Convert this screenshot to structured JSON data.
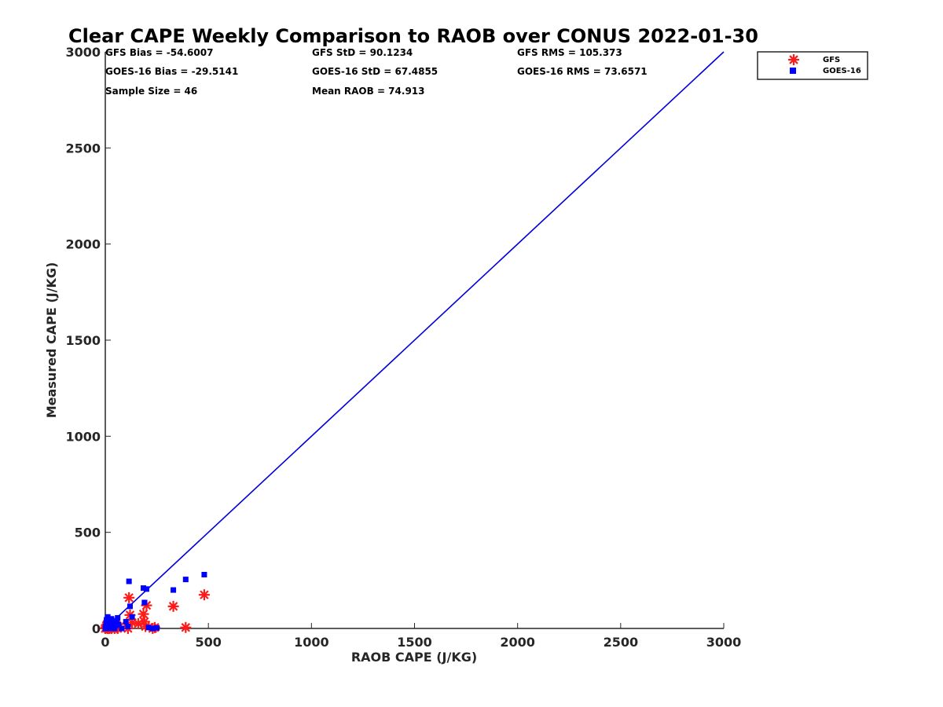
{
  "chart_data": {
    "type": "scatter",
    "title": "Clear CAPE Weekly Comparison to RAOB over CONUS 2022-01-30",
    "xlabel": "RAOB CAPE (J/KG)",
    "ylabel": "Measured CAPE (J/KG)",
    "xlim": [
      0,
      3000
    ],
    "ylim": [
      0,
      3000
    ],
    "xticks": [
      0,
      500,
      1000,
      1500,
      2000,
      2500,
      3000
    ],
    "yticks": [
      0,
      500,
      1000,
      1500,
      2000,
      2500,
      3000
    ],
    "grid": false,
    "legend_position": "top-right",
    "stats": [
      "GFS Bias = -54.6007",
      "GFS StD = 90.1234",
      "GFS RMS = 105.373",
      "GOES-16 Bias = -29.5141",
      "GOES-16 StD = 67.4855",
      "GOES-16 RMS = 73.6571",
      "Sample Size = 46",
      "Mean RAOB = 74.913"
    ],
    "one_to_one_line": {
      "x": [
        0,
        3000
      ],
      "y": [
        0,
        3000
      ],
      "color": "#0000dd"
    },
    "series": [
      {
        "name": "GFS",
        "marker": "asterisk",
        "color": "#ff1a1a",
        "points": [
          [
            0,
            0
          ],
          [
            3,
            5
          ],
          [
            5,
            15
          ],
          [
            8,
            2
          ],
          [
            10,
            20
          ],
          [
            12,
            0
          ],
          [
            15,
            8
          ],
          [
            18,
            30
          ],
          [
            20,
            0
          ],
          [
            22,
            12
          ],
          [
            25,
            5
          ],
          [
            30,
            0
          ],
          [
            35,
            18
          ],
          [
            40,
            8
          ],
          [
            45,
            0
          ],
          [
            50,
            25
          ],
          [
            55,
            5
          ],
          [
            60,
            0
          ],
          [
            70,
            10
          ],
          [
            110,
            0
          ],
          [
            115,
            160
          ],
          [
            120,
            70
          ],
          [
            130,
            30
          ],
          [
            160,
            25
          ],
          [
            185,
            75
          ],
          [
            190,
            35
          ],
          [
            195,
            10
          ],
          [
            200,
            120
          ],
          [
            230,
            0
          ],
          [
            240,
            5
          ],
          [
            330,
            115
          ],
          [
            390,
            5
          ],
          [
            480,
            175
          ]
        ]
      },
      {
        "name": "GOES-16",
        "marker": "square",
        "color": "#0000ff",
        "points": [
          [
            0,
            0
          ],
          [
            2,
            10
          ],
          [
            4,
            30
          ],
          [
            6,
            45
          ],
          [
            8,
            5
          ],
          [
            10,
            20
          ],
          [
            12,
            60
          ],
          [
            15,
            35
          ],
          [
            18,
            0
          ],
          [
            20,
            15
          ],
          [
            22,
            40
          ],
          [
            25,
            25
          ],
          [
            28,
            5
          ],
          [
            30,
            50
          ],
          [
            35,
            10
          ],
          [
            40,
            30
          ],
          [
            45,
            0
          ],
          [
            50,
            15
          ],
          [
            55,
            40
          ],
          [
            60,
            55
          ],
          [
            65,
            20
          ],
          [
            80,
            0
          ],
          [
            100,
            35
          ],
          [
            110,
            10
          ],
          [
            115,
            245
          ],
          [
            120,
            115
          ],
          [
            130,
            60
          ],
          [
            185,
            210
          ],
          [
            190,
            135
          ],
          [
            200,
            205
          ],
          [
            210,
            5
          ],
          [
            230,
            0
          ],
          [
            250,
            3
          ],
          [
            330,
            200
          ],
          [
            390,
            255
          ],
          [
            480,
            280
          ]
        ]
      }
    ]
  }
}
